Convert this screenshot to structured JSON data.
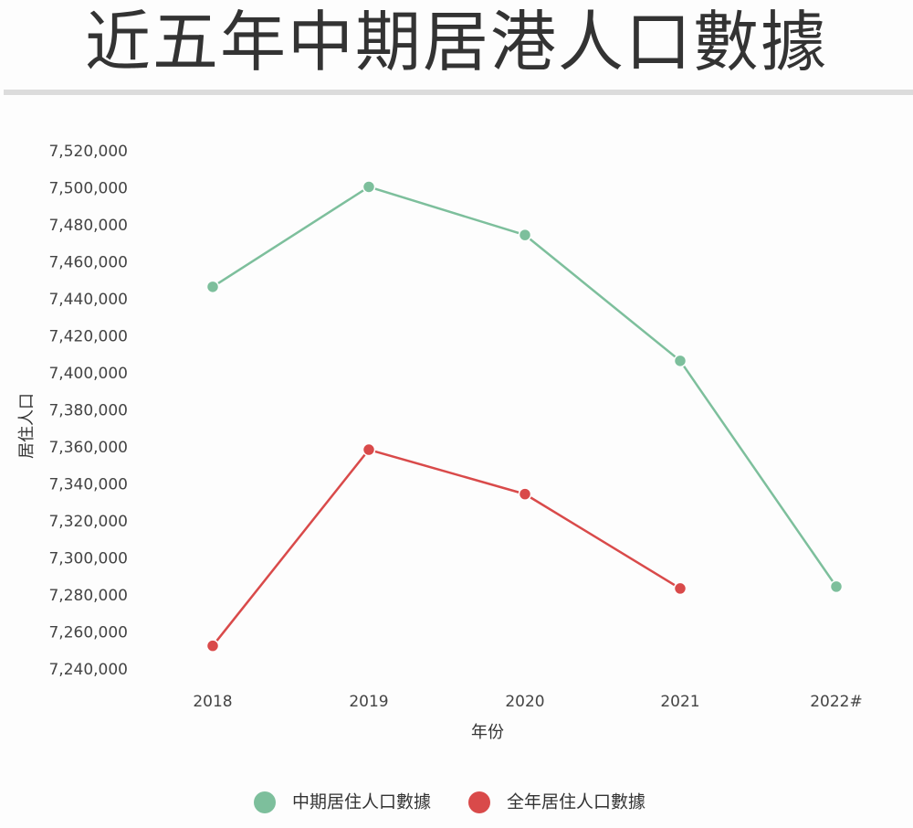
{
  "title": "近五年中期居港人口數據",
  "colors": {
    "mid_year": "#7dbf9c",
    "full_year": "#d94a4a"
  },
  "chart_data": {
    "type": "line",
    "title": "近五年中期居港人口數據",
    "xlabel": "年份",
    "ylabel": "居住人口",
    "categories": [
      "2018",
      "2019",
      "2020",
      "2021",
      "2022#"
    ],
    "ylim": [
      7240000,
      7520000
    ],
    "yticks": [
      7240000,
      7260000,
      7280000,
      7300000,
      7320000,
      7340000,
      7360000,
      7380000,
      7400000,
      7420000,
      7440000,
      7460000,
      7480000,
      7500000,
      7520000
    ],
    "ytick_labels": [
      "7,240,000",
      "7,260,000",
      "7,280,000",
      "7,300,000",
      "7,320,000",
      "7,340,000",
      "7,360,000",
      "7,380,000",
      "7,400,000",
      "7,420,000",
      "7,440,000",
      "7,460,000",
      "7,480,000",
      "7,500,000",
      "7,520,000"
    ],
    "series": [
      {
        "name": "中期居住人口數據",
        "color": "#7dbf9c",
        "values": [
          7447000,
          7501000,
          7475000,
          7407000,
          7285000
        ]
      },
      {
        "name": "全年居住人口數據",
        "color": "#d94a4a",
        "values": [
          7253000,
          7359000,
          7335000,
          7284000,
          null
        ]
      }
    ],
    "grid": false,
    "legend_position": "bottom-center"
  }
}
